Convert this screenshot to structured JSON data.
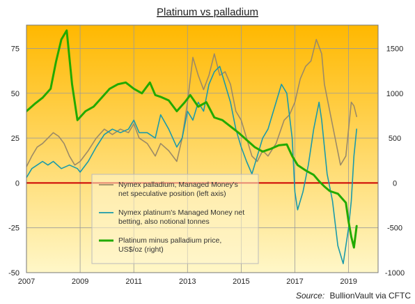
{
  "chart_data": {
    "type": "line",
    "title": "Platinum vs palladium",
    "source_label": "Source:",
    "source_text": "BullionVault via CFTC",
    "x_ticks": [
      "2007",
      "2009",
      "2011",
      "2013",
      "2015",
      "2017",
      "2019"
    ],
    "x_range": [
      2007,
      2020.1
    ],
    "y_left": {
      "ticks": [
        "-50",
        "-25",
        "0",
        "25",
        "50",
        "75"
      ],
      "range": [
        -50,
        88
      ]
    },
    "y_right": {
      "ticks": [
        "-1000",
        "-500",
        "0",
        "500",
        "1000",
        "1500"
      ],
      "range": [
        -1000,
        1760
      ]
    },
    "zero_line": true,
    "grid": true,
    "legend_position": "center-left",
    "colors": {
      "bg_top": "#FFB800",
      "bg_bottom": "#FFF7C8",
      "grid": "#9A9A9A",
      "zero": "#CC0000",
      "palladium": "#9C8A66",
      "platinum": "#1A9AAA",
      "spread": "#22AA00"
    },
    "series": [
      {
        "key": "palladium",
        "axis": "left",
        "legend_lines": [
          "Nymex palladium, Managed Money's",
          "net speculative position (left axis)"
        ],
        "points": [
          [
            2007.0,
            9
          ],
          [
            2007.2,
            15
          ],
          [
            2007.4,
            20
          ],
          [
            2007.6,
            22
          ],
          [
            2007.8,
            25
          ],
          [
            2008.0,
            28
          ],
          [
            2008.2,
            26
          ],
          [
            2008.4,
            22
          ],
          [
            2008.6,
            15
          ],
          [
            2008.8,
            10
          ],
          [
            2009.0,
            12
          ],
          [
            2009.3,
            18
          ],
          [
            2009.6,
            25
          ],
          [
            2009.9,
            30
          ],
          [
            2010.2,
            27
          ],
          [
            2010.5,
            30
          ],
          [
            2010.8,
            28
          ],
          [
            2011.0,
            33
          ],
          [
            2011.2,
            25
          ],
          [
            2011.5,
            22
          ],
          [
            2011.8,
            15
          ],
          [
            2012.0,
            22
          ],
          [
            2012.3,
            18
          ],
          [
            2012.6,
            12
          ],
          [
            2012.8,
            25
          ],
          [
            2013.0,
            45
          ],
          [
            2013.2,
            70
          ],
          [
            2013.4,
            60
          ],
          [
            2013.6,
            52
          ],
          [
            2013.8,
            60
          ],
          [
            2014.0,
            72
          ],
          [
            2014.2,
            60
          ],
          [
            2014.4,
            62
          ],
          [
            2014.6,
            55
          ],
          [
            2014.8,
            40
          ],
          [
            2015.0,
            35
          ],
          [
            2015.2,
            25
          ],
          [
            2015.4,
            15
          ],
          [
            2015.6,
            12
          ],
          [
            2015.8,
            18
          ],
          [
            2016.0,
            15
          ],
          [
            2016.3,
            22
          ],
          [
            2016.6,
            35
          ],
          [
            2016.8,
            38
          ],
          [
            2017.0,
            45
          ],
          [
            2017.2,
            58
          ],
          [
            2017.4,
            65
          ],
          [
            2017.6,
            68
          ],
          [
            2017.8,
            80
          ],
          [
            2018.0,
            72
          ],
          [
            2018.1,
            55
          ],
          [
            2018.3,
            40
          ],
          [
            2018.5,
            25
          ],
          [
            2018.7,
            10
          ],
          [
            2018.9,
            15
          ],
          [
            2019.0,
            30
          ],
          [
            2019.1,
            45
          ],
          [
            2019.2,
            43
          ],
          [
            2019.3,
            37
          ]
        ]
      },
      {
        "key": "platinum",
        "axis": "left",
        "legend_lines": [
          "Nymex platinum's Managed Money net",
          "betting, also notional tonnes"
        ],
        "points": [
          [
            2007.0,
            3
          ],
          [
            2007.2,
            8
          ],
          [
            2007.4,
            10
          ],
          [
            2007.6,
            12
          ],
          [
            2007.8,
            10
          ],
          [
            2008.0,
            12
          ],
          [
            2008.3,
            8
          ],
          [
            2008.6,
            10
          ],
          [
            2008.9,
            8
          ],
          [
            2009.0,
            6
          ],
          [
            2009.3,
            12
          ],
          [
            2009.6,
            20
          ],
          [
            2009.9,
            27
          ],
          [
            2010.2,
            30
          ],
          [
            2010.5,
            28
          ],
          [
            2010.8,
            30
          ],
          [
            2011.0,
            35
          ],
          [
            2011.2,
            28
          ],
          [
            2011.5,
            28
          ],
          [
            2011.8,
            25
          ],
          [
            2012.0,
            38
          ],
          [
            2012.3,
            30
          ],
          [
            2012.6,
            20
          ],
          [
            2012.8,
            25
          ],
          [
            2013.0,
            40
          ],
          [
            2013.2,
            35
          ],
          [
            2013.4,
            45
          ],
          [
            2013.6,
            40
          ],
          [
            2013.8,
            55
          ],
          [
            2014.0,
            62
          ],
          [
            2014.2,
            65
          ],
          [
            2014.4,
            55
          ],
          [
            2014.6,
            45
          ],
          [
            2014.8,
            30
          ],
          [
            2015.0,
            20
          ],
          [
            2015.2,
            12
          ],
          [
            2015.4,
            5
          ],
          [
            2015.6,
            15
          ],
          [
            2015.8,
            25
          ],
          [
            2016.0,
            30
          ],
          [
            2016.3,
            45
          ],
          [
            2016.5,
            55
          ],
          [
            2016.7,
            50
          ],
          [
            2016.9,
            25
          ],
          [
            2017.0,
            -5
          ],
          [
            2017.1,
            -15
          ],
          [
            2017.3,
            -5
          ],
          [
            2017.5,
            10
          ],
          [
            2017.7,
            30
          ],
          [
            2017.9,
            45
          ],
          [
            2018.0,
            35
          ],
          [
            2018.2,
            5
          ],
          [
            2018.4,
            -10
          ],
          [
            2018.6,
            -35
          ],
          [
            2018.8,
            -45
          ],
          [
            2019.0,
            -25
          ],
          [
            2019.1,
            -10
          ],
          [
            2019.2,
            15
          ],
          [
            2019.3,
            30
          ]
        ]
      },
      {
        "key": "spread",
        "axis": "right",
        "legend_lines": [
          "Platinum minus palladium price,",
          "US$/oz (right)"
        ],
        "points": [
          [
            2007.0,
            800
          ],
          [
            2007.3,
            880
          ],
          [
            2007.6,
            950
          ],
          [
            2007.9,
            1050
          ],
          [
            2008.1,
            1350
          ],
          [
            2008.3,
            1600
          ],
          [
            2008.5,
            1700
          ],
          [
            2008.7,
            1100
          ],
          [
            2008.9,
            700
          ],
          [
            2009.2,
            800
          ],
          [
            2009.5,
            850
          ],
          [
            2009.8,
            950
          ],
          [
            2010.1,
            1050
          ],
          [
            2010.4,
            1100
          ],
          [
            2010.7,
            1120
          ],
          [
            2011.0,
            1050
          ],
          [
            2011.3,
            1000
          ],
          [
            2011.6,
            1120
          ],
          [
            2011.8,
            980
          ],
          [
            2012.0,
            960
          ],
          [
            2012.3,
            920
          ],
          [
            2012.6,
            800
          ],
          [
            2012.9,
            900
          ],
          [
            2013.1,
            980
          ],
          [
            2013.4,
            850
          ],
          [
            2013.7,
            900
          ],
          [
            2014.0,
            730
          ],
          [
            2014.3,
            700
          ],
          [
            2014.6,
            630
          ],
          [
            2014.9,
            560
          ],
          [
            2015.2,
            480
          ],
          [
            2015.5,
            400
          ],
          [
            2015.8,
            350
          ],
          [
            2016.1,
            380
          ],
          [
            2016.4,
            420
          ],
          [
            2016.7,
            430
          ],
          [
            2016.9,
            300
          ],
          [
            2017.1,
            200
          ],
          [
            2017.4,
            140
          ],
          [
            2017.7,
            90
          ],
          [
            2017.9,
            20
          ],
          [
            2018.1,
            -40
          ],
          [
            2018.3,
            -90
          ],
          [
            2018.6,
            -120
          ],
          [
            2018.9,
            -220
          ],
          [
            2019.0,
            -430
          ],
          [
            2019.1,
            -600
          ],
          [
            2019.2,
            -720
          ],
          [
            2019.3,
            -480
          ]
        ]
      }
    ]
  }
}
